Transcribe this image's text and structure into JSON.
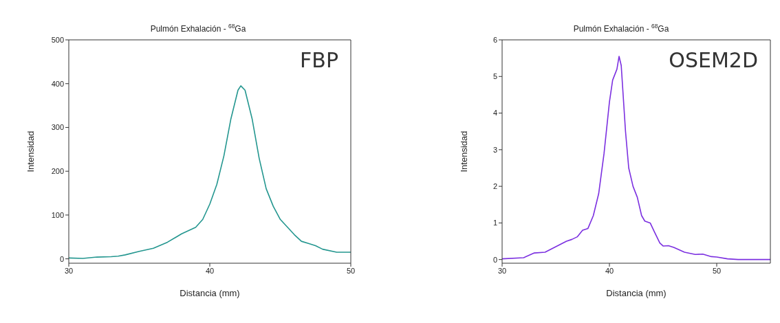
{
  "chart_data": [
    {
      "type": "line",
      "title": "Pulmón Exhalación - $^{68}$Ga",
      "xlabel": "Distancia (mm)",
      "ylabel": "Intensidad",
      "annotations": [
        "FBP"
      ],
      "xlim": [
        30,
        50
      ],
      "xticks": [
        30,
        40,
        50
      ],
      "ylim": [
        -10,
        500
      ],
      "yticks": [
        0,
        100,
        200,
        300,
        400,
        500
      ],
      "marker": "none",
      "line_style": "solid",
      "series": [
        {
          "color": "#23968f",
          "x": [
            30,
            31,
            32,
            33,
            33.5,
            34,
            35,
            36,
            37,
            38,
            39,
            39.5,
            40,
            40.5,
            41,
            41.5,
            42,
            42.2,
            42.5,
            43,
            43.5,
            44,
            44.5,
            45,
            46,
            46.5,
            47,
            47.5,
            48,
            49,
            50
          ],
          "values": [
            2,
            1,
            4,
            5,
            6,
            9,
            17,
            24,
            38,
            57,
            72,
            90,
            125,
            170,
            235,
            320,
            385,
            395,
            385,
            320,
            230,
            160,
            120,
            90,
            55,
            40,
            35,
            30,
            22,
            15,
            15
          ]
        }
      ]
    },
    {
      "type": "line",
      "title": "Pulmón Exhalación - $^{68}$Ga",
      "xlabel": "Distancia (mm)",
      "ylabel": "Intensidad",
      "annotations": [
        "OSEM2D"
      ],
      "xlim": [
        30,
        55
      ],
      "xticks": [
        30,
        40,
        50
      ],
      "ylim": [
        -0.1,
        6
      ],
      "yticks": [
        0,
        1,
        2,
        3,
        4,
        5,
        6
      ],
      "marker": "none",
      "line_style": "solid",
      "series": [
        {
          "color": "#7b2fe0",
          "x": [
            30,
            32,
            33,
            34,
            35,
            36,
            36.5,
            37,
            37.5,
            38,
            38.5,
            39,
            39.5,
            40,
            40.3,
            40.7,
            40.9,
            41.1,
            41.5,
            41.8,
            42.2,
            42.6,
            43,
            43.3,
            43.8,
            44.2,
            44.7,
            45,
            45.5,
            46,
            47,
            48,
            48.7,
            49.5,
            50,
            51,
            52,
            55
          ],
          "values": [
            0.02,
            0.05,
            0.18,
            0.2,
            0.35,
            0.5,
            0.55,
            0.62,
            0.8,
            0.85,
            1.2,
            1.8,
            2.9,
            4.3,
            4.9,
            5.2,
            5.55,
            5.3,
            3.5,
            2.5,
            2.0,
            1.7,
            1.2,
            1.05,
            1.0,
            0.75,
            0.45,
            0.37,
            0.38,
            0.33,
            0.2,
            0.14,
            0.15,
            0.08,
            0.07,
            0.02,
            0,
            0
          ]
        }
      ]
    }
  ]
}
